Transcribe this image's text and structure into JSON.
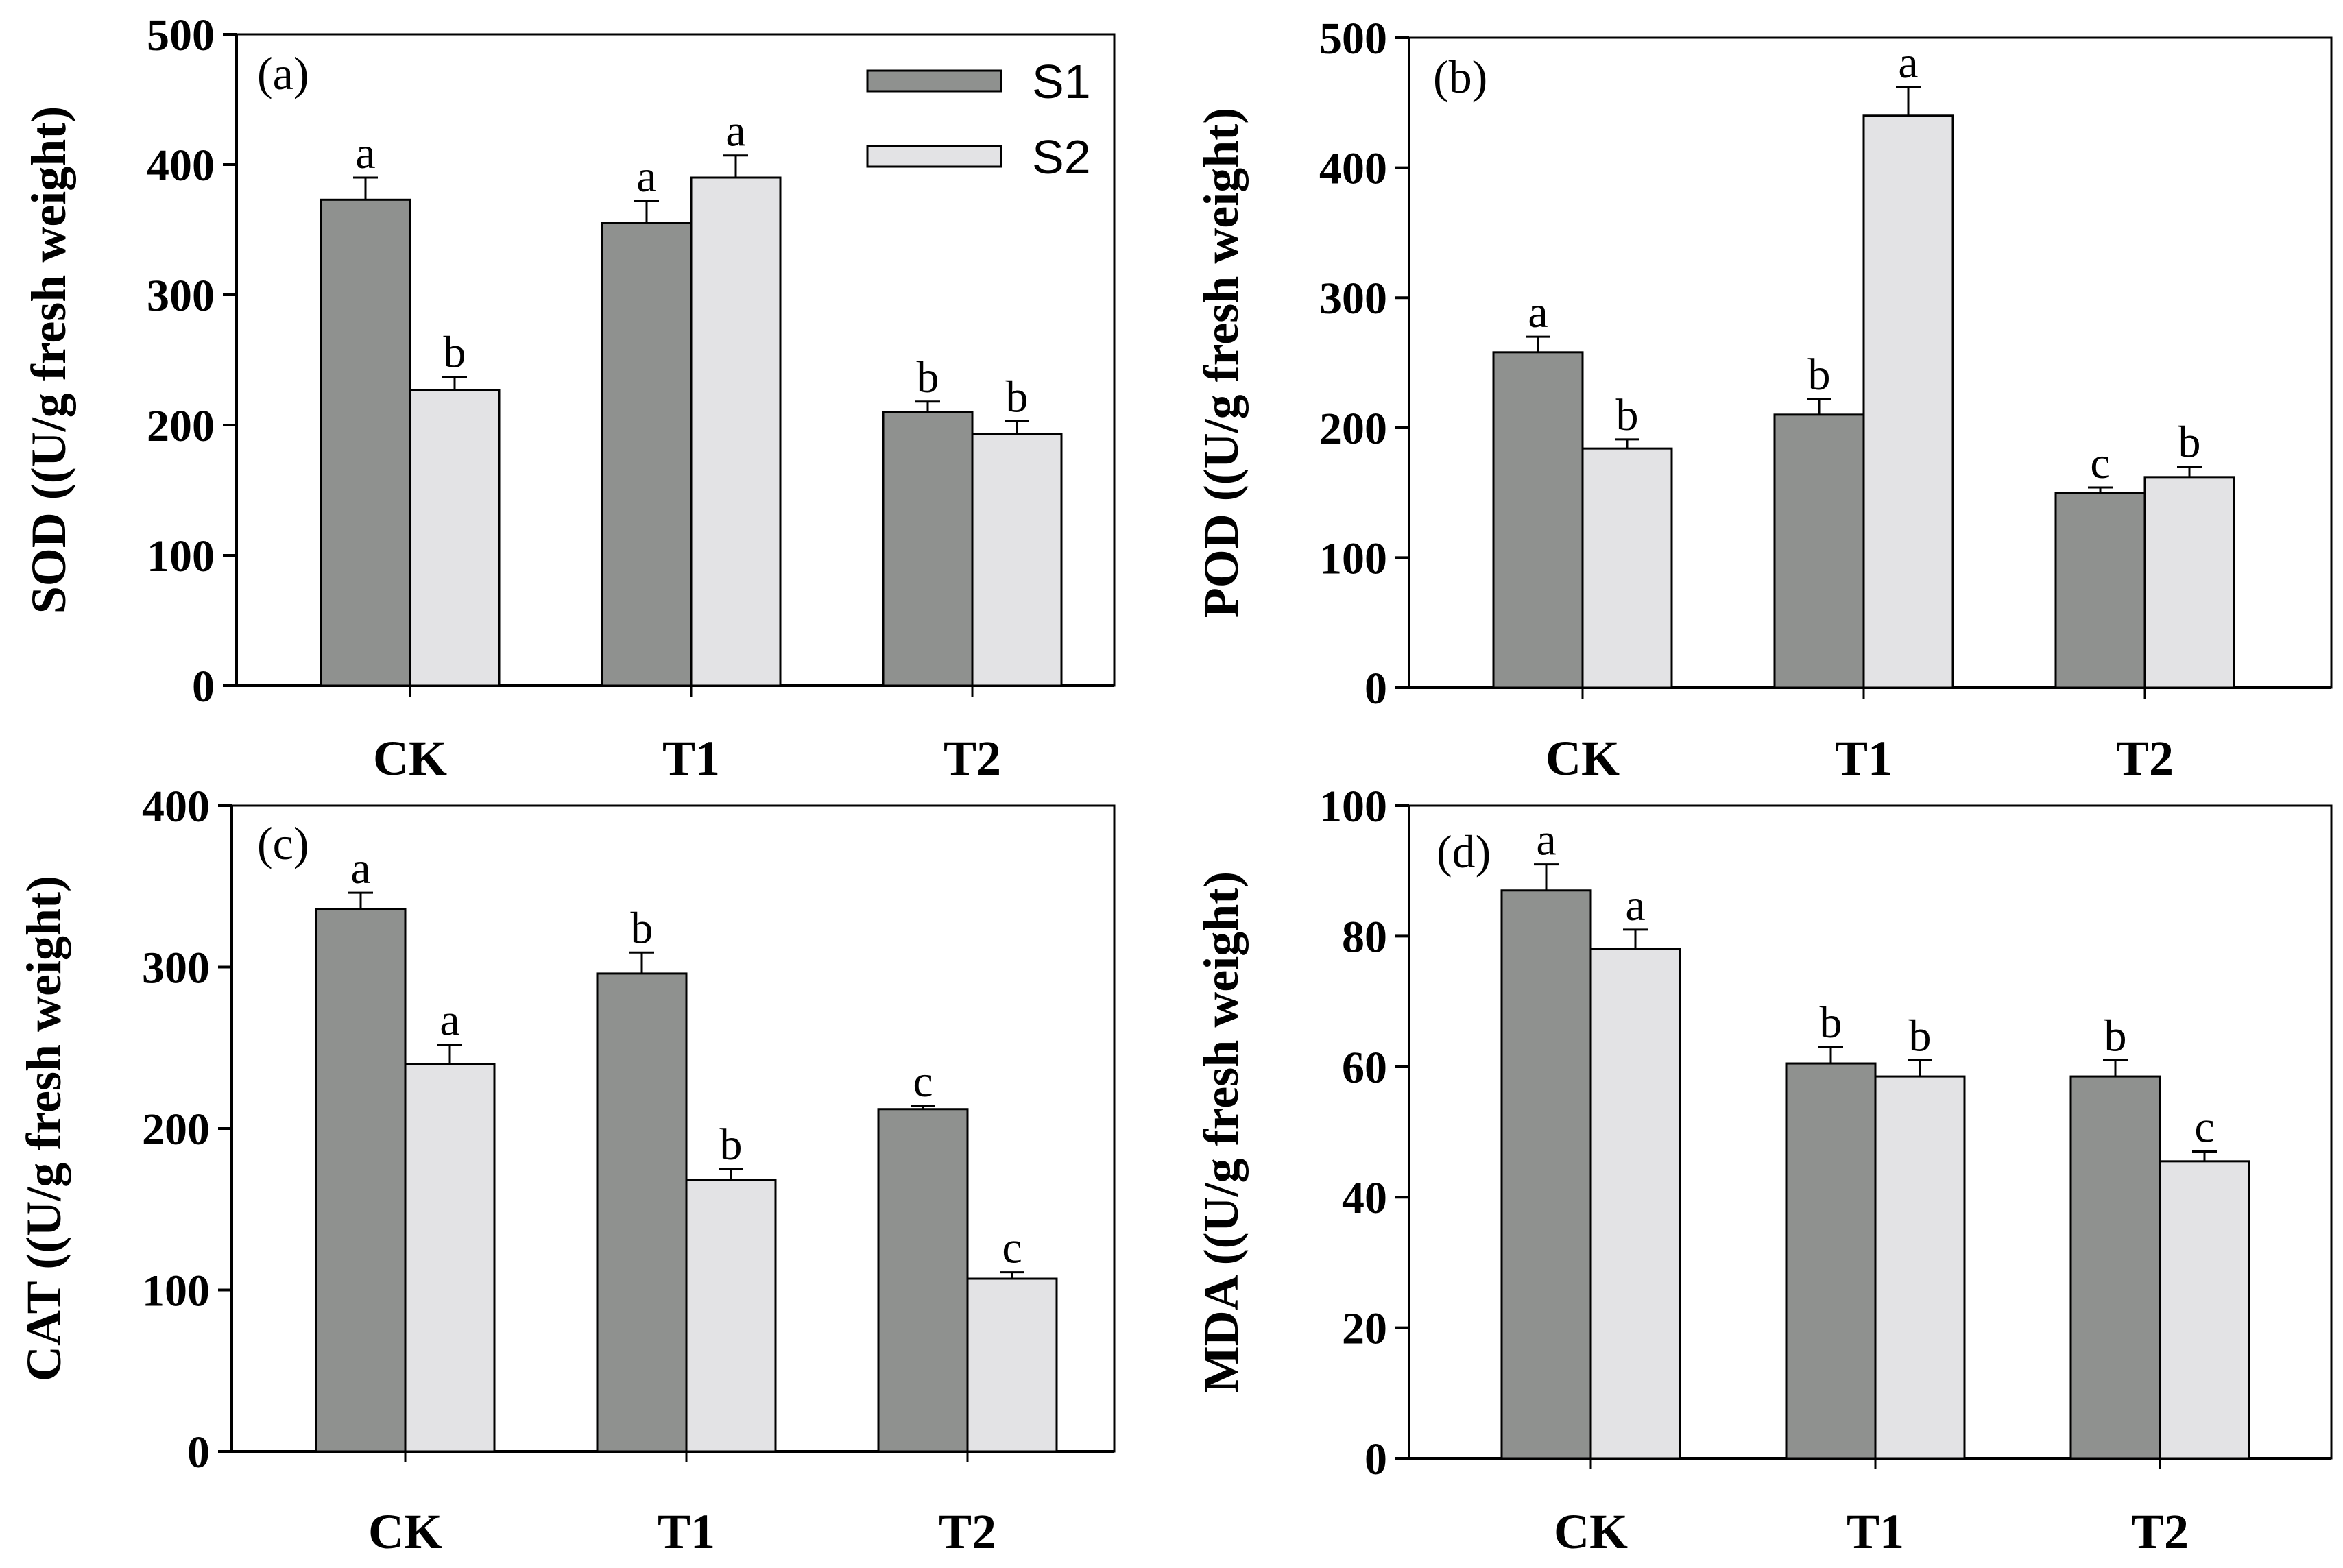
{
  "figure": {
    "legend": [
      {
        "name": "S1",
        "color": "#8f918f"
      },
      {
        "name": "S2",
        "color": "#e3e3e5"
      }
    ]
  },
  "chart_data": [
    {
      "type": "bar",
      "panel": "(a)",
      "ylabel": "SOD ((U/g fresh weight)",
      "categories": [
        "CK",
        "T1",
        "T2"
      ],
      "ylim": [
        0,
        500
      ],
      "yticks": [
        0,
        100,
        200,
        300,
        400,
        500
      ],
      "series": [
        {
          "name": "S1",
          "values": [
            373,
            355,
            210
          ],
          "errors": [
            17,
            17,
            8
          ],
          "letters": [
            "a",
            "a",
            "b"
          ]
        },
        {
          "name": "S2",
          "values": [
            227,
            390,
            193
          ],
          "errors": [
            10,
            17,
            10
          ],
          "letters": [
            "b",
            "a",
            "b"
          ]
        }
      ]
    },
    {
      "type": "bar",
      "panel": "(b)",
      "ylabel": "POD ((U/g fresh weight)",
      "categories": [
        "CK",
        "T1",
        "T2"
      ],
      "ylim": [
        0,
        500
      ],
      "yticks": [
        0,
        100,
        200,
        300,
        400,
        500
      ],
      "series": [
        {
          "name": "S1",
          "values": [
            258,
            210,
            150
          ],
          "errors": [
            12,
            12,
            4
          ],
          "letters": [
            "a",
            "b",
            "c"
          ]
        },
        {
          "name": "S2",
          "values": [
            184,
            440,
            162
          ],
          "errors": [
            7,
            22,
            8
          ],
          "letters": [
            "b",
            "a",
            "b"
          ]
        }
      ]
    },
    {
      "type": "bar",
      "panel": "(c)",
      "ylabel": "CAT ((U/g fresh weight)",
      "categories": [
        "CK",
        "T1",
        "T2"
      ],
      "ylim": [
        0,
        400
      ],
      "yticks": [
        0,
        100,
        200,
        300,
        400
      ],
      "series": [
        {
          "name": "S1",
          "values": [
            336,
            296,
            212
          ],
          "errors": [
            10,
            13,
            2
          ],
          "letters": [
            "a",
            "b",
            "c"
          ]
        },
        {
          "name": "S2",
          "values": [
            240,
            168,
            107
          ],
          "errors": [
            12,
            7,
            4
          ],
          "letters": [
            "a",
            "b",
            "c"
          ]
        }
      ]
    },
    {
      "type": "bar",
      "panel": "(d)",
      "ylabel": "MDA ((U/g fresh weight)",
      "categories": [
        "CK",
        "T1",
        "T2"
      ],
      "ylim": [
        0,
        100
      ],
      "yticks": [
        0,
        20,
        40,
        60,
        80,
        100
      ],
      "series": [
        {
          "name": "S1",
          "values": [
            87,
            60.5,
            58.5
          ],
          "errors": [
            4,
            2.5,
            2.5
          ],
          "letters": [
            "a",
            "b",
            "b"
          ]
        },
        {
          "name": "S2",
          "values": [
            78,
            58.5,
            45.5
          ],
          "errors": [
            3,
            2.5,
            1.5
          ],
          "letters": [
            "a",
            "b",
            "c"
          ]
        }
      ]
    }
  ]
}
